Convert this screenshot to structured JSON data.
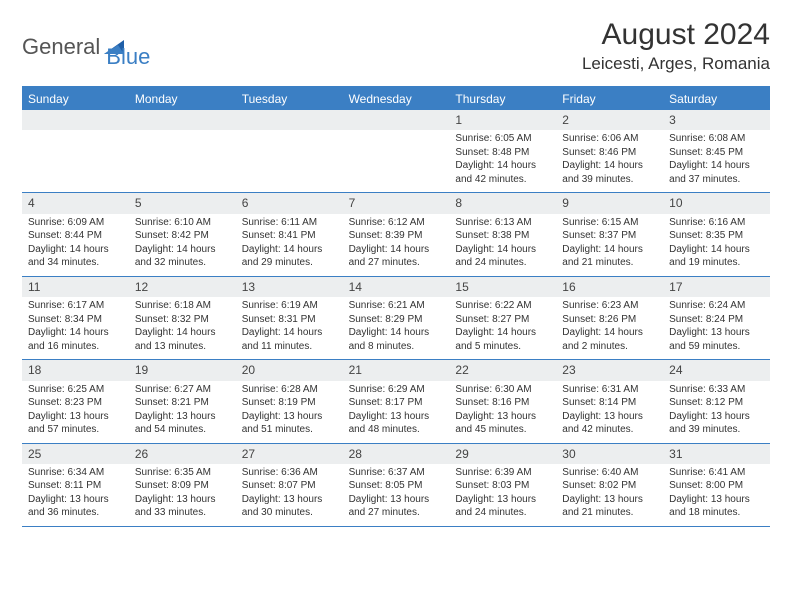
{
  "logo": {
    "part1": "General",
    "part2": "Blue"
  },
  "title": "August 2024",
  "location": "Leicesti, Arges, Romania",
  "colors": {
    "accent": "#3b7fc4",
    "daynum_bg": "#eceeef",
    "text": "#333333",
    "bg": "#ffffff"
  },
  "day_headers": [
    "Sunday",
    "Monday",
    "Tuesday",
    "Wednesday",
    "Thursday",
    "Friday",
    "Saturday"
  ],
  "weeks": [
    [
      null,
      null,
      null,
      null,
      {
        "n": "1",
        "sr": "Sunrise: 6:05 AM",
        "ss": "Sunset: 8:48 PM",
        "dl": "Daylight: 14 hours and 42 minutes."
      },
      {
        "n": "2",
        "sr": "Sunrise: 6:06 AM",
        "ss": "Sunset: 8:46 PM",
        "dl": "Daylight: 14 hours and 39 minutes."
      },
      {
        "n": "3",
        "sr": "Sunrise: 6:08 AM",
        "ss": "Sunset: 8:45 PM",
        "dl": "Daylight: 14 hours and 37 minutes."
      }
    ],
    [
      {
        "n": "4",
        "sr": "Sunrise: 6:09 AM",
        "ss": "Sunset: 8:44 PM",
        "dl": "Daylight: 14 hours and 34 minutes."
      },
      {
        "n": "5",
        "sr": "Sunrise: 6:10 AM",
        "ss": "Sunset: 8:42 PM",
        "dl": "Daylight: 14 hours and 32 minutes."
      },
      {
        "n": "6",
        "sr": "Sunrise: 6:11 AM",
        "ss": "Sunset: 8:41 PM",
        "dl": "Daylight: 14 hours and 29 minutes."
      },
      {
        "n": "7",
        "sr": "Sunrise: 6:12 AM",
        "ss": "Sunset: 8:39 PM",
        "dl": "Daylight: 14 hours and 27 minutes."
      },
      {
        "n": "8",
        "sr": "Sunrise: 6:13 AM",
        "ss": "Sunset: 8:38 PM",
        "dl": "Daylight: 14 hours and 24 minutes."
      },
      {
        "n": "9",
        "sr": "Sunrise: 6:15 AM",
        "ss": "Sunset: 8:37 PM",
        "dl": "Daylight: 14 hours and 21 minutes."
      },
      {
        "n": "10",
        "sr": "Sunrise: 6:16 AM",
        "ss": "Sunset: 8:35 PM",
        "dl": "Daylight: 14 hours and 19 minutes."
      }
    ],
    [
      {
        "n": "11",
        "sr": "Sunrise: 6:17 AM",
        "ss": "Sunset: 8:34 PM",
        "dl": "Daylight: 14 hours and 16 minutes."
      },
      {
        "n": "12",
        "sr": "Sunrise: 6:18 AM",
        "ss": "Sunset: 8:32 PM",
        "dl": "Daylight: 14 hours and 13 minutes."
      },
      {
        "n": "13",
        "sr": "Sunrise: 6:19 AM",
        "ss": "Sunset: 8:31 PM",
        "dl": "Daylight: 14 hours and 11 minutes."
      },
      {
        "n": "14",
        "sr": "Sunrise: 6:21 AM",
        "ss": "Sunset: 8:29 PM",
        "dl": "Daylight: 14 hours and 8 minutes."
      },
      {
        "n": "15",
        "sr": "Sunrise: 6:22 AM",
        "ss": "Sunset: 8:27 PM",
        "dl": "Daylight: 14 hours and 5 minutes."
      },
      {
        "n": "16",
        "sr": "Sunrise: 6:23 AM",
        "ss": "Sunset: 8:26 PM",
        "dl": "Daylight: 14 hours and 2 minutes."
      },
      {
        "n": "17",
        "sr": "Sunrise: 6:24 AM",
        "ss": "Sunset: 8:24 PM",
        "dl": "Daylight: 13 hours and 59 minutes."
      }
    ],
    [
      {
        "n": "18",
        "sr": "Sunrise: 6:25 AM",
        "ss": "Sunset: 8:23 PM",
        "dl": "Daylight: 13 hours and 57 minutes."
      },
      {
        "n": "19",
        "sr": "Sunrise: 6:27 AM",
        "ss": "Sunset: 8:21 PM",
        "dl": "Daylight: 13 hours and 54 minutes."
      },
      {
        "n": "20",
        "sr": "Sunrise: 6:28 AM",
        "ss": "Sunset: 8:19 PM",
        "dl": "Daylight: 13 hours and 51 minutes."
      },
      {
        "n": "21",
        "sr": "Sunrise: 6:29 AM",
        "ss": "Sunset: 8:17 PM",
        "dl": "Daylight: 13 hours and 48 minutes."
      },
      {
        "n": "22",
        "sr": "Sunrise: 6:30 AM",
        "ss": "Sunset: 8:16 PM",
        "dl": "Daylight: 13 hours and 45 minutes."
      },
      {
        "n": "23",
        "sr": "Sunrise: 6:31 AM",
        "ss": "Sunset: 8:14 PM",
        "dl": "Daylight: 13 hours and 42 minutes."
      },
      {
        "n": "24",
        "sr": "Sunrise: 6:33 AM",
        "ss": "Sunset: 8:12 PM",
        "dl": "Daylight: 13 hours and 39 minutes."
      }
    ],
    [
      {
        "n": "25",
        "sr": "Sunrise: 6:34 AM",
        "ss": "Sunset: 8:11 PM",
        "dl": "Daylight: 13 hours and 36 minutes."
      },
      {
        "n": "26",
        "sr": "Sunrise: 6:35 AM",
        "ss": "Sunset: 8:09 PM",
        "dl": "Daylight: 13 hours and 33 minutes."
      },
      {
        "n": "27",
        "sr": "Sunrise: 6:36 AM",
        "ss": "Sunset: 8:07 PM",
        "dl": "Daylight: 13 hours and 30 minutes."
      },
      {
        "n": "28",
        "sr": "Sunrise: 6:37 AM",
        "ss": "Sunset: 8:05 PM",
        "dl": "Daylight: 13 hours and 27 minutes."
      },
      {
        "n": "29",
        "sr": "Sunrise: 6:39 AM",
        "ss": "Sunset: 8:03 PM",
        "dl": "Daylight: 13 hours and 24 minutes."
      },
      {
        "n": "30",
        "sr": "Sunrise: 6:40 AM",
        "ss": "Sunset: 8:02 PM",
        "dl": "Daylight: 13 hours and 21 minutes."
      },
      {
        "n": "31",
        "sr": "Sunrise: 6:41 AM",
        "ss": "Sunset: 8:00 PM",
        "dl": "Daylight: 13 hours and 18 minutes."
      }
    ]
  ]
}
